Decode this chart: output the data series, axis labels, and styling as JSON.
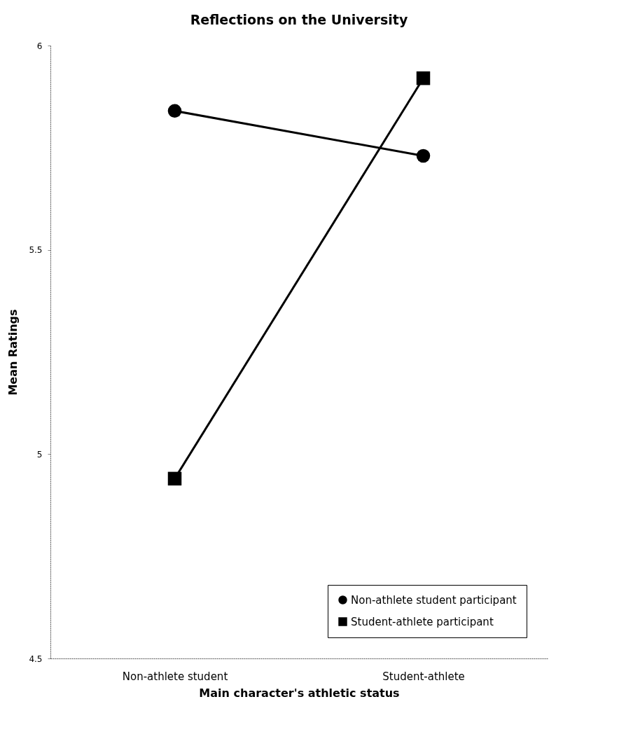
{
  "chart_data": {
    "type": "line",
    "title": "Reflections on the University",
    "xlabel": "Main character's athletic status",
    "ylabel": "Mean Ratings",
    "categories": [
      "Non-athlete student",
      "Student-athlete"
    ],
    "series": [
      {
        "name": "Non-athlete student participant",
        "color": "#000000",
        "marker": "circle",
        "values": [
          5.84,
          5.73
        ]
      },
      {
        "name": "Student-athlete participant",
        "color": "#000000",
        "marker": "square",
        "values": [
          4.94,
          5.92
        ]
      }
    ],
    "ylim": [
      4.5,
      6
    ],
    "yticks": [
      4.5,
      5,
      5.5,
      6
    ],
    "grid": false,
    "legend": "bottom right",
    "line_style": "solid"
  }
}
